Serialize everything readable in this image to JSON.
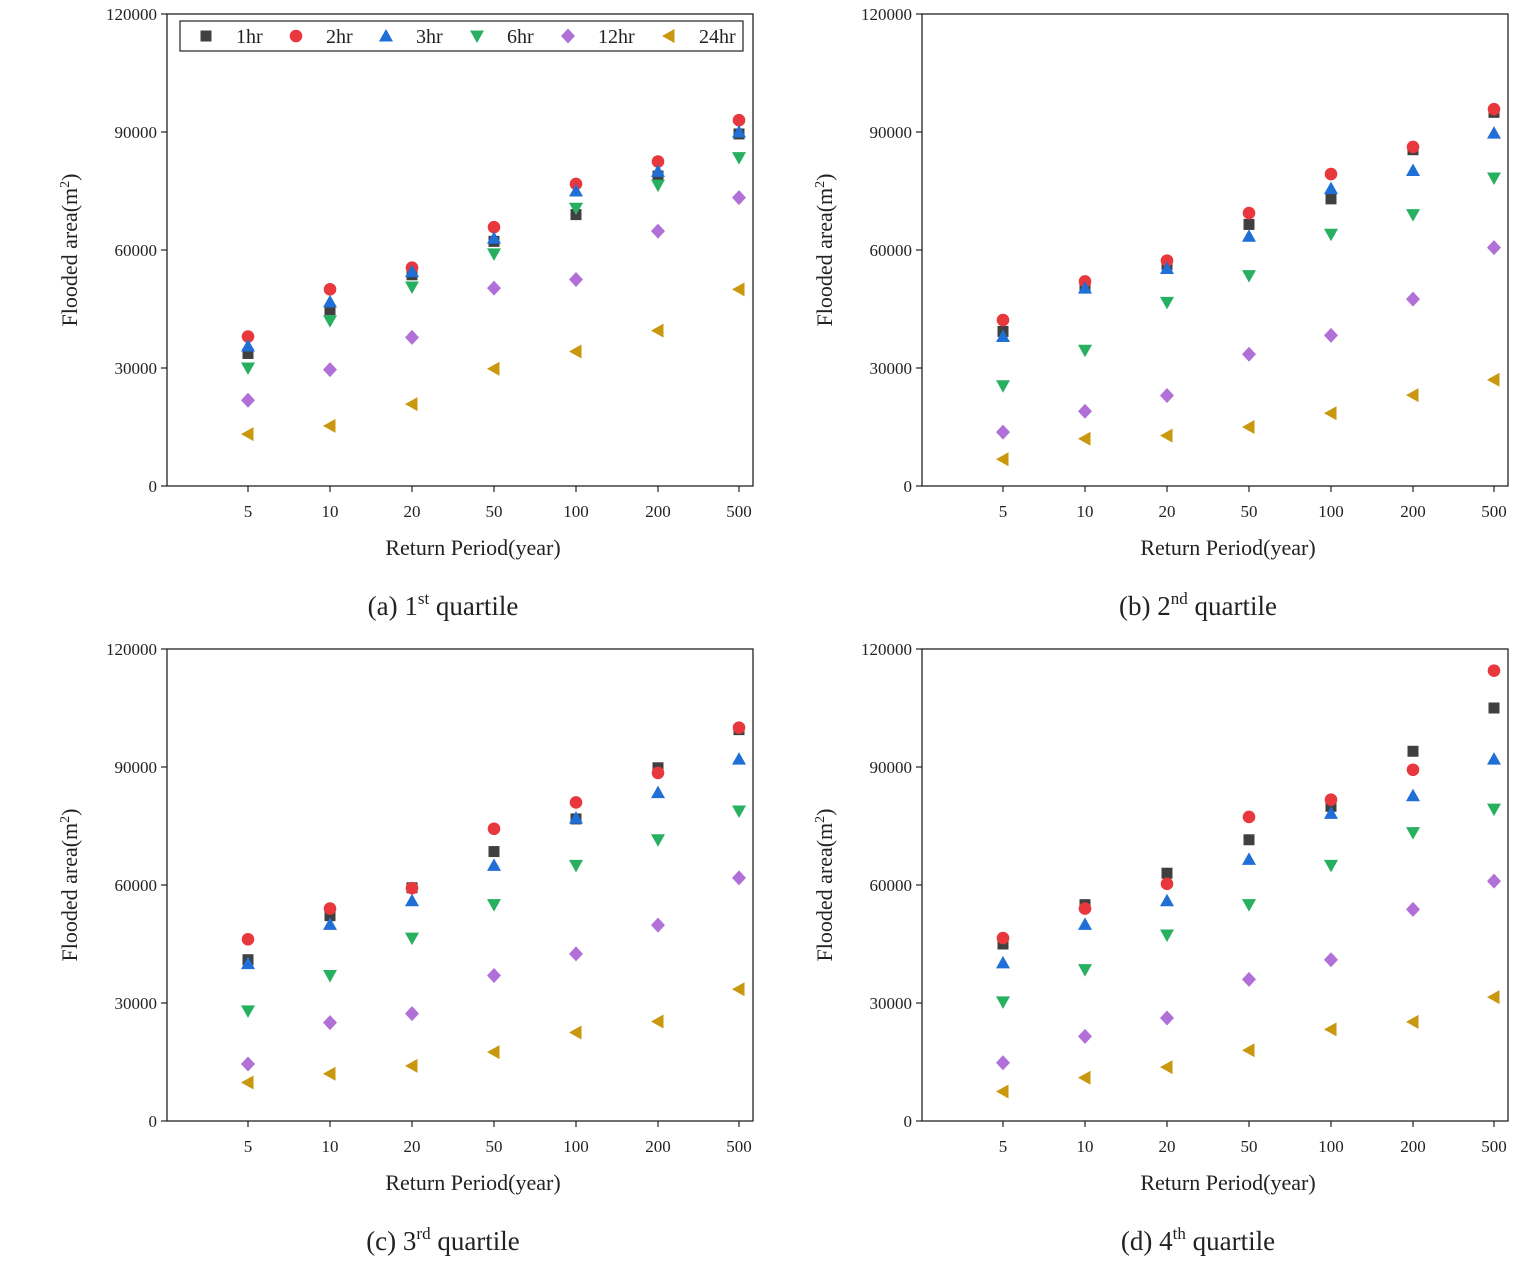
{
  "colors": {
    "1hr": "#404040",
    "2hr": "#e8383d",
    "3hr": "#1f6fd6",
    "6hr": "#27b060",
    "12hr": "#b16fd8",
    "24hr": "#c9980f"
  },
  "legend": {
    "items": [
      {
        "key": "1hr",
        "label": "1hr",
        "marker": "square"
      },
      {
        "key": "2hr",
        "label": "2hr",
        "marker": "circle"
      },
      {
        "key": "3hr",
        "label": "3hr",
        "marker": "triangle-up"
      },
      {
        "key": "6hr",
        "label": "6hr",
        "marker": "triangle-down"
      },
      {
        "key": "12hr",
        "label": "12hr",
        "marker": "diamond"
      },
      {
        "key": "24hr",
        "label": "24hr",
        "marker": "triangle-left"
      }
    ]
  },
  "chart_data": [
    {
      "type": "scatter",
      "id": "a",
      "caption": {
        "prefix": "(a) 1",
        "sup": "st",
        "suffix": " quartile"
      },
      "xlabel": "Return Period(year)",
      "ylabel": "Flooded area(m",
      "ylabel_sup": "2",
      "ylabel_end": ")",
      "categories": [
        "5",
        "10",
        "20",
        "50",
        "100",
        "200",
        "500"
      ],
      "ylim": [
        0,
        120000
      ],
      "yticks": [
        "0",
        "30000",
        "60000",
        "90000",
        "120000"
      ],
      "series": [
        {
          "name": "1hr",
          "values": [
            33700,
            44800,
            53700,
            62200,
            69000,
            78800,
            89500
          ]
        },
        {
          "name": "2hr",
          "values": [
            38000,
            50000,
            55500,
            65800,
            76800,
            82500,
            93000
          ]
        },
        {
          "name": "3hr",
          "values": [
            35600,
            46800,
            54500,
            63000,
            75000,
            80000,
            90000
          ]
        },
        {
          "name": "6hr",
          "values": [
            30000,
            42000,
            50600,
            59000,
            70600,
            76500,
            83500
          ]
        },
        {
          "name": "12hr",
          "values": [
            21800,
            29600,
            37800,
            50300,
            52500,
            64800,
            73300
          ]
        },
        {
          "name": "24hr",
          "values": [
            13200,
            15300,
            20800,
            29800,
            34200,
            39500,
            50000
          ]
        }
      ]
    },
    {
      "type": "scatter",
      "id": "b",
      "caption": {
        "prefix": "(b) 2",
        "sup": "nd",
        "suffix": " quartile"
      },
      "xlabel": "Return Period(year)",
      "ylabel": "Flooded area(m",
      "ylabel_sup": "2",
      "ylabel_end": ")",
      "categories": [
        "5",
        "10",
        "20",
        "50",
        "100",
        "200",
        "500"
      ],
      "ylim": [
        0,
        120000
      ],
      "yticks": [
        "0",
        "30000",
        "60000",
        "90000",
        "120000"
      ],
      "series": [
        {
          "name": "1hr",
          "values": [
            39300,
            51000,
            56300,
            66500,
            73000,
            85500,
            95000
          ]
        },
        {
          "name": "2hr",
          "values": [
            42200,
            52000,
            57300,
            69400,
            79300,
            86200,
            95800
          ]
        },
        {
          "name": "3hr",
          "values": [
            38000,
            50300,
            55300,
            63500,
            75600,
            80200,
            89700
          ]
        },
        {
          "name": "6hr",
          "values": [
            25500,
            34500,
            46700,
            53500,
            64000,
            69000,
            78300
          ]
        },
        {
          "name": "12hr",
          "values": [
            13700,
            19000,
            23000,
            33500,
            38300,
            47500,
            60600
          ]
        },
        {
          "name": "24hr",
          "values": [
            6800,
            12000,
            12800,
            15000,
            18500,
            23100,
            27000
          ]
        }
      ]
    },
    {
      "type": "scatter",
      "id": "c",
      "caption": {
        "prefix": "(c) 3",
        "sup": "rd",
        "suffix": " quartile"
      },
      "xlabel": "Return Period(year)",
      "ylabel": "Flooded area(m",
      "ylabel_sup": "2",
      "ylabel_end": ")",
      "categories": [
        "5",
        "10",
        "20",
        "50",
        "100",
        "200",
        "500"
      ],
      "ylim": [
        0,
        120000
      ],
      "yticks": [
        "0",
        "30000",
        "60000",
        "90000",
        "120000"
      ],
      "series": [
        {
          "name": "1hr",
          "values": [
            41000,
            52200,
            59300,
            68500,
            76800,
            89800,
            99500
          ]
        },
        {
          "name": "2hr",
          "values": [
            46200,
            54000,
            59200,
            74300,
            81000,
            88500,
            100000
          ]
        },
        {
          "name": "3hr",
          "values": [
            40000,
            50000,
            56000,
            65000,
            77000,
            83500,
            92000
          ]
        },
        {
          "name": "6hr",
          "values": [
            28000,
            37000,
            46500,
            55000,
            65000,
            71500,
            78800
          ]
        },
        {
          "name": "12hr",
          "values": [
            14500,
            25000,
            27300,
            37000,
            42500,
            49800,
            61800
          ]
        },
        {
          "name": "24hr",
          "values": [
            9800,
            12000,
            14000,
            17500,
            22500,
            25300,
            33500
          ]
        }
      ]
    },
    {
      "type": "scatter",
      "id": "d",
      "caption": {
        "prefix": "(d) 4",
        "sup": "th",
        "suffix": " quartile"
      },
      "xlabel": "Return Period(year)",
      "ylabel": "Flooded area(m",
      "ylabel_sup": "2",
      "ylabel_end": ")",
      "categories": [
        "5",
        "10",
        "20",
        "50",
        "100",
        "200",
        "500"
      ],
      "ylim": [
        0,
        120000
      ],
      "yticks": [
        "0",
        "30000",
        "60000",
        "90000",
        "120000"
      ],
      "series": [
        {
          "name": "1hr",
          "values": [
            45000,
            55000,
            63000,
            71500,
            80000,
            94000,
            105000
          ]
        },
        {
          "name": "2hr",
          "values": [
            46500,
            54000,
            60300,
            77300,
            81700,
            89300,
            114500
          ]
        },
        {
          "name": "3hr",
          "values": [
            40200,
            50000,
            56000,
            66500,
            78200,
            82700,
            92000
          ]
        },
        {
          "name": "6hr",
          "values": [
            30300,
            38500,
            47300,
            55000,
            65000,
            73300,
            79300
          ]
        },
        {
          "name": "12hr",
          "values": [
            14800,
            21500,
            26200,
            36000,
            41000,
            53800,
            61000
          ]
        },
        {
          "name": "24hr",
          "values": [
            7500,
            11000,
            13700,
            18000,
            23300,
            25200,
            31500
          ]
        }
      ]
    }
  ]
}
